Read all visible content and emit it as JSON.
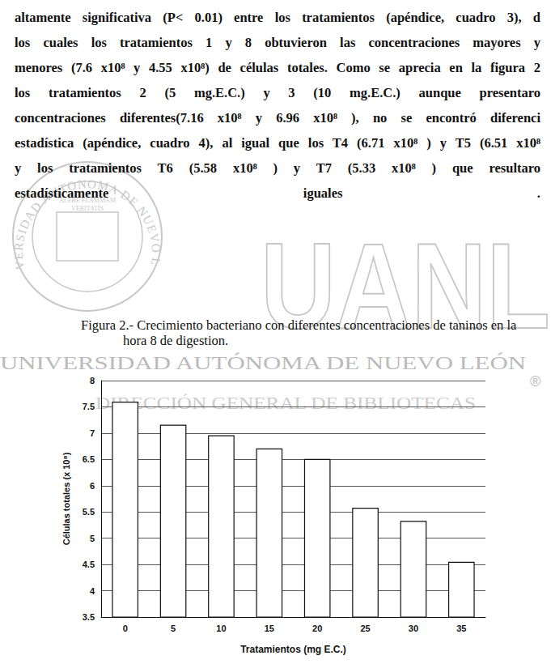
{
  "paragraph": [
    "altamente significativa (P< 0.01) entre los tratamientos (apéndice, cuadro 3), d",
    "los cuales los tratamientos 1 y 8 obtuvieron las concentraciones mayores y",
    "menores (7.6 x10⁸ y 4.55 x10⁸) de células totales. Como se aprecia en la figura 2",
    "los tratamientos 2 (5 mg.E.C.) y 3 (10 mg.E.C.) aunque presentaro",
    "concentraciones diferentes(7.16 x10⁸ y 6.96 x10⁸ ), no se encontró diferenci",
    "estadística (apéndice, cuadro 4), al igual que los T4 (6.71 x10⁸ ) y T5 (6.51 x10⁸",
    "y los tratamientos T6 (5.58 x10⁸ ) y T7 (5.33 x10⁸ ) que resultaro",
    "estadísticamente iguales ."
  ],
  "caption": [
    "Figura 2.- Crecimiento bacteriano con diferentes concentraciones de taninos en la",
    "hora 8 de digestion."
  ],
  "watermark": {
    "logo": "UANL",
    "university": "UNIVERSIDAD AUTÓNOMA DE NUEVO LEÓN",
    "library": "DIRECCIÓN GENERAL DE BIBLIOTECAS",
    "registered": "®",
    "seal_ring": "UNIVERSIDAD AUTONOMA DE NUEVO LEON",
    "seal_motto": [
      "ALERE FLAMMAM",
      "VERITATIS"
    ]
  },
  "chart_data": {
    "type": "bar",
    "categories": [
      "0",
      "5",
      "10",
      "15",
      "20",
      "25",
      "30",
      "35"
    ],
    "values": [
      7.6,
      7.16,
      6.96,
      6.71,
      6.51,
      5.58,
      5.33,
      4.55
    ],
    "color": "#ffffff",
    "ylim": [
      3.5,
      8
    ],
    "yticks": [
      3.5,
      4,
      4.5,
      5,
      5.5,
      6,
      6.5,
      7,
      7.5,
      8
    ],
    "grid": true,
    "xlabel": "Tratamientos (mg E.C.)",
    "ylabel": "Células totales (x 10⁸)"
  }
}
